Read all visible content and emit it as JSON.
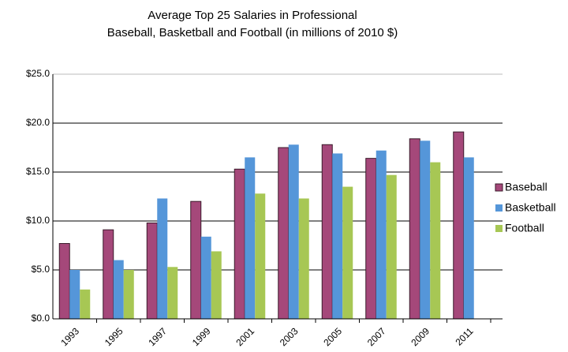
{
  "chart_data": {
    "type": "bar",
    "title": [
      "Average Top 25 Salaries in Professional",
      "Baseball, Basketball and Football (in millions of 2010 $)"
    ],
    "categories": [
      "1993",
      "1995",
      "1997",
      "1999",
      "2001",
      "2003",
      "2005",
      "2007",
      "2009",
      "2011"
    ],
    "series": [
      {
        "name": "Baseball",
        "color": "#a5487a",
        "values": [
          7.7,
          9.1,
          9.8,
          12.0,
          15.3,
          17.5,
          17.8,
          16.4,
          18.4,
          19.1
        ]
      },
      {
        "name": "Basketball",
        "color": "#5596d9",
        "values": [
          5.0,
          6.0,
          12.3,
          8.4,
          16.5,
          17.8,
          16.9,
          17.2,
          18.2,
          16.5
        ]
      },
      {
        "name": "Football",
        "color": "#a7c754",
        "values": [
          3.0,
          5.0,
          5.3,
          6.9,
          12.8,
          12.3,
          13.5,
          14.7,
          16.0,
          null
        ]
      }
    ],
    "ylim": [
      0,
      25
    ],
    "yticks": [
      {
        "value": 0,
        "label": "$0.0"
      },
      {
        "value": 5,
        "label": "$5.0"
      },
      {
        "value": 10,
        "label": "$10.0"
      },
      {
        "value": 15,
        "label": "$15.0"
      },
      {
        "value": 20,
        "label": "$20.0"
      },
      {
        "value": 25,
        "label": "$25.0"
      }
    ],
    "grid": true,
    "legend": "right"
  }
}
